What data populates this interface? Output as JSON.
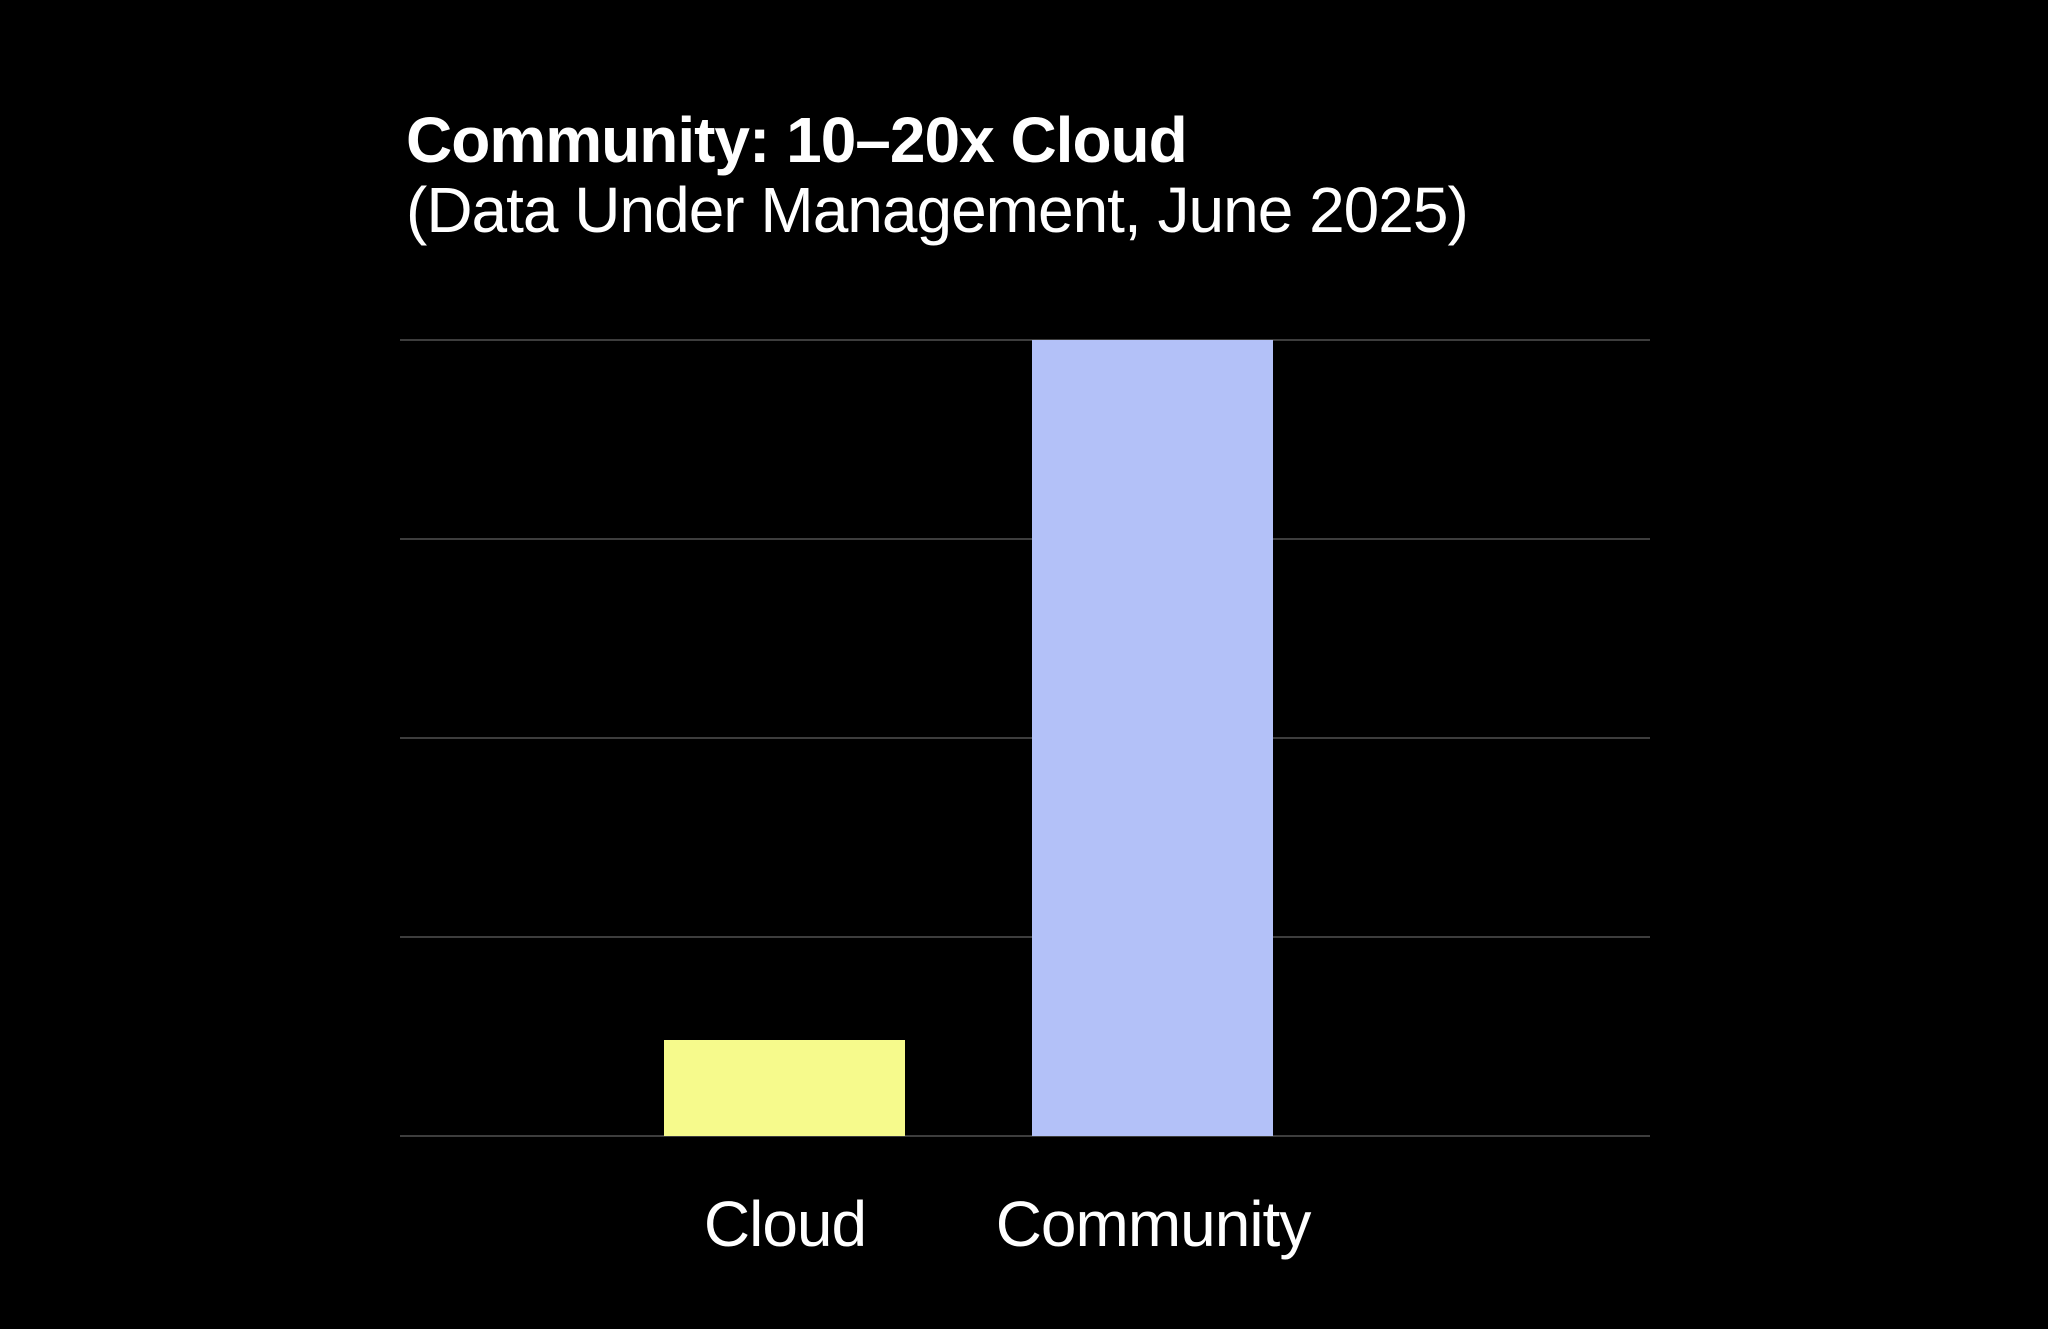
{
  "header": {
    "title": "Community: 10–20x Cloud",
    "subtitle": "(Data Under Management, June 2025)"
  },
  "chart_data": {
    "type": "bar",
    "title": "Community: 10–20x Cloud",
    "subtitle": "(Data Under Management, June 2025)",
    "categories": [
      "Cloud",
      "Community"
    ],
    "values": [
      12,
      100
    ],
    "value_note": "no numeric axis labels shown; values estimated from bar heights, Community bar reaches top gridline",
    "xlabel": "",
    "ylabel": "",
    "ylim": [
      0,
      100
    ],
    "gridlines": {
      "horizontal": true,
      "count": 5,
      "step": 25
    },
    "legend": false,
    "bar_colors": [
      "#F6FA8C",
      "#B3C1F8"
    ],
    "colors": {
      "background": "#000000",
      "text": "#FFFFFF",
      "gridline": "#3D3D3D"
    }
  }
}
